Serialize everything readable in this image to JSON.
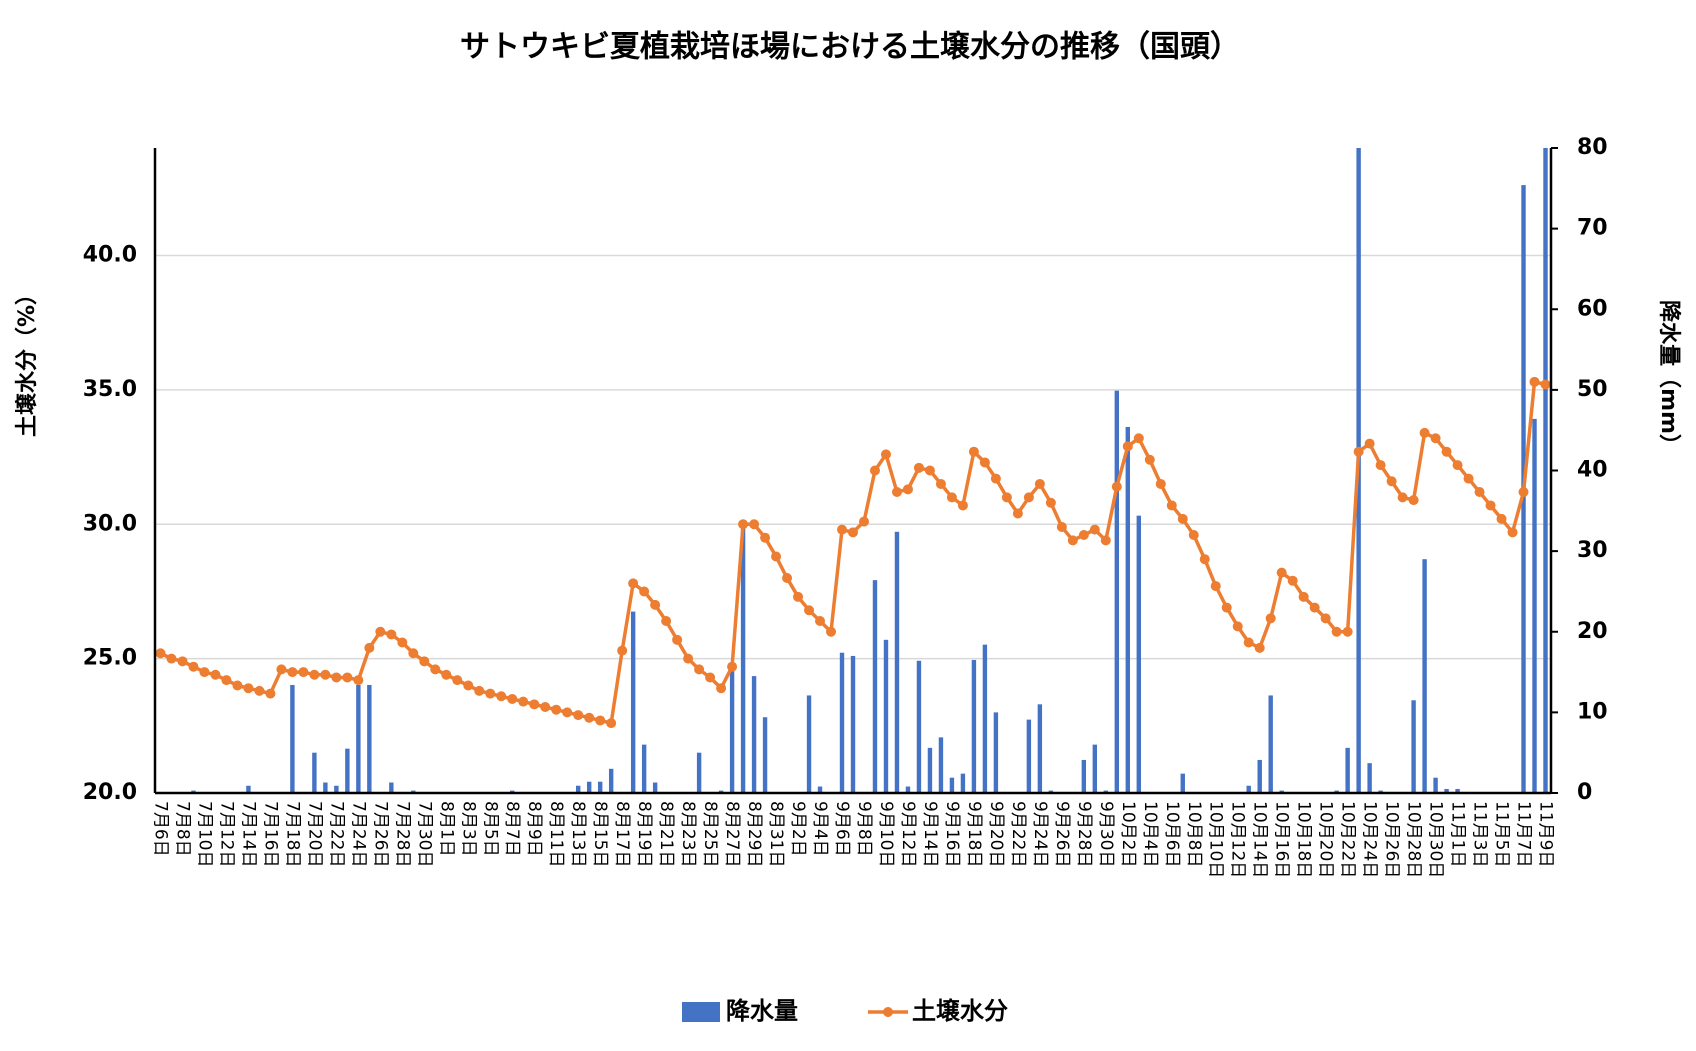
{
  "chart_data": {
    "type": "combo",
    "title": "サトウキビ夏植栽培ほ場における土壌水分の推移（国頭）",
    "y_label": "土壌水分（%）",
    "y2_label": "降水量（mm）",
    "categories": [
      "7月6日",
      null,
      "7月8日",
      null,
      "7月10日",
      null,
      "7月12日",
      null,
      "7月14日",
      null,
      "7月16日",
      null,
      "7月18日",
      null,
      "7月20日",
      null,
      "7月22日",
      null,
      "7月24日",
      null,
      "7月26日",
      null,
      "7月28日",
      null,
      "7月30日",
      null,
      "8月1日",
      null,
      "8月3日",
      null,
      "8月5日",
      null,
      "8月7日",
      null,
      "8月9日",
      null,
      "8月11日",
      null,
      "8月13日",
      null,
      "8月15日",
      null,
      "8月17日",
      null,
      "8月19日",
      null,
      "8月21日",
      null,
      "8月23日",
      null,
      "8月25日",
      null,
      "8月27日",
      null,
      "8月29日",
      null,
      "8月31日",
      null,
      "9月2日",
      null,
      "9月4日",
      null,
      "9月6日",
      null,
      "9月8日",
      null,
      "9月10日",
      null,
      "9月12日",
      null,
      "9月14日",
      null,
      "9月16日",
      null,
      "9月18日",
      null,
      "9月20日",
      null,
      "9月22日",
      null,
      "9月24日",
      null,
      "9月26日",
      null,
      "9月28日",
      null,
      "9月30日",
      null,
      "10月2日",
      null,
      "10月4日",
      null,
      "10月6日",
      null,
      "10月8日",
      null,
      "10月10日",
      null,
      "10月12日",
      null,
      "10月14日",
      null,
      "10月16日",
      null,
      "10月18日",
      null,
      "10月20日",
      null,
      "10月22日",
      null,
      "10月24日",
      null,
      "10月26日",
      null,
      "10月28日",
      null,
      "10月30日",
      null,
      "11月1日",
      null,
      "11月3日",
      null,
      "11月5日",
      null,
      "11月7日",
      null,
      "11月9日"
    ],
    "series": [
      {
        "name": "降水量",
        "type": "bar",
        "axis": "y2",
        "color": "#4472c4",
        "values": [
          0,
          0,
          0,
          0.3,
          0,
          0,
          0,
          0,
          0.9,
          0,
          0,
          0,
          13.4,
          0,
          5.0,
          1.3,
          0.9,
          5.5,
          13.4,
          13.4,
          0,
          1.3,
          0,
          0.3,
          0,
          0,
          0,
          0,
          0,
          0,
          0,
          0,
          0.3,
          0,
          0,
          0,
          0,
          0,
          0.9,
          1.4,
          1.4,
          3.0,
          0,
          22.5,
          6.0,
          1.3,
          0,
          0,
          0,
          5.0,
          0,
          0.3,
          15.6,
          33.0,
          14.5,
          9.4,
          0,
          0,
          0,
          12.1,
          0.8,
          0,
          17.4,
          17.0,
          0,
          26.4,
          19.0,
          32.4,
          0.8,
          16.4,
          5.6,
          6.9,
          1.9,
          2.4,
          16.5,
          18.4,
          10.0,
          0,
          0,
          9.1,
          11.0,
          0.3,
          0,
          0,
          4.1,
          6.0,
          0.3,
          49.9,
          45.4,
          34.4,
          0,
          0,
          0,
          2.4,
          0,
          0,
          0,
          0,
          0,
          0.9,
          4.1,
          12.1,
          0.3,
          0,
          0,
          0,
          0,
          0.3,
          5.6,
          80,
          3.7,
          0.3,
          0,
          0,
          11.5,
          29.0,
          1.9,
          0.5,
          0.5,
          0,
          0,
          0,
          0,
          0,
          75.4,
          46.4,
          80
        ]
      },
      {
        "name": "土壌水分",
        "type": "line",
        "color": "#ed7d31",
        "values": [
          25.2,
          25.0,
          24.9,
          24.7,
          24.5,
          24.4,
          24.2,
          24.0,
          23.9,
          23.8,
          23.7,
          24.6,
          24.5,
          24.5,
          24.4,
          24.4,
          24.3,
          24.3,
          24.2,
          25.4,
          26.0,
          25.9,
          25.6,
          25.2,
          24.9,
          24.6,
          24.4,
          24.2,
          24.0,
          23.8,
          23.7,
          23.6,
          23.5,
          23.4,
          23.3,
          23.2,
          23.1,
          23.0,
          22.9,
          22.8,
          22.7,
          22.6,
          25.3,
          27.8,
          27.5,
          27.0,
          26.4,
          25.7,
          25.0,
          24.6,
          24.3,
          23.9,
          24.7,
          30.0,
          30.0,
          29.5,
          28.8,
          28.0,
          27.3,
          26.8,
          26.4,
          26.0,
          29.8,
          29.7,
          30.1,
          32.0,
          32.6,
          31.2,
          31.3,
          32.1,
          32.0,
          31.5,
          31.0,
          30.7,
          32.7,
          32.3,
          31.7,
          31.0,
          30.4,
          31.0,
          31.5,
          30.8,
          29.9,
          29.4,
          29.6,
          29.8,
          29.4,
          31.4,
          32.9,
          33.2,
          32.4,
          31.5,
          30.7,
          30.2,
          29.6,
          28.7,
          27.7,
          26.9,
          26.2,
          25.6,
          25.4,
          26.5,
          28.2,
          27.9,
          27.3,
          26.9,
          26.5,
          26.0,
          26.0,
          32.7,
          33.0,
          32.2,
          31.6,
          31.0,
          30.9,
          33.4,
          33.2,
          32.7,
          32.2,
          31.7,
          31.2,
          30.7,
          30.2,
          29.7,
          31.2,
          35.3,
          35.2
        ]
      }
    ],
    "ylim": [
      20,
      44
    ],
    "yticks": [
      {
        "value": 20,
        "label": "20.0"
      },
      {
        "value": 25,
        "label": "25.0"
      },
      {
        "value": 30,
        "label": "30.0"
      },
      {
        "value": 35,
        "label": "35.0"
      },
      {
        "value": 40,
        "label": "40.0"
      }
    ],
    "y2lim": [
      0,
      80
    ],
    "y2ticks": [
      0,
      10,
      20,
      30,
      40,
      50,
      60,
      70,
      80
    ],
    "grid": true,
    "legend": "bottom"
  }
}
